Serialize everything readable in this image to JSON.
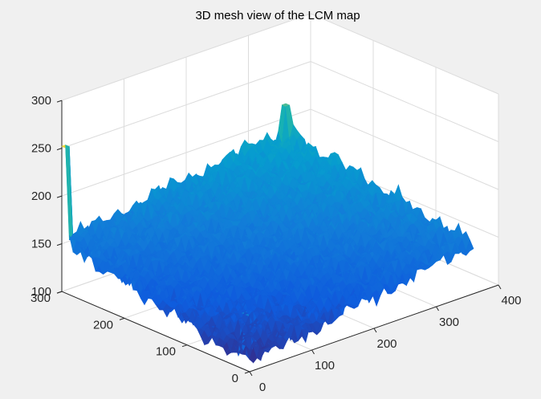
{
  "chart_data": {
    "type": "surface-mesh",
    "title": "3D mesh view of the LCM map",
    "xlabel": "",
    "ylabel": "",
    "zlabel": "",
    "x_ticks": [
      "0",
      "100",
      "200",
      "300",
      "400"
    ],
    "y_ticks": [
      "0",
      "100",
      "200",
      "300"
    ],
    "z_ticks": [
      "100",
      "150",
      "200",
      "250",
      "300"
    ],
    "xlim": [
      0,
      400
    ],
    "ylim": [
      0,
      300
    ],
    "zlim": [
      100,
      300
    ],
    "grid": true,
    "colormap": "parula",
    "surface": {
      "x_extent": [
        0,
        360
      ],
      "y_extent": [
        0,
        300
      ],
      "corner_heights": {
        "x0_y0": 108,
        "x360_y0": 152,
        "x0_y300": 152,
        "x360_y300": 188
      },
      "spikes": [
        {
          "x": 0,
          "y": 300,
          "z": 252
        },
        {
          "x": 360,
          "y": 300,
          "z": 215
        },
        {
          "x": 5,
          "y": 5,
          "z": 158
        }
      ]
    }
  },
  "colors": {
    "background": "#f0f0f0",
    "axes_background": "#ffffff",
    "grid": "#dcdcdc",
    "axis_line": "#262626",
    "colormap_low": "#352a87",
    "colormap_mid": "#1fa9c9",
    "colormap_high": "#f9fb0e"
  }
}
